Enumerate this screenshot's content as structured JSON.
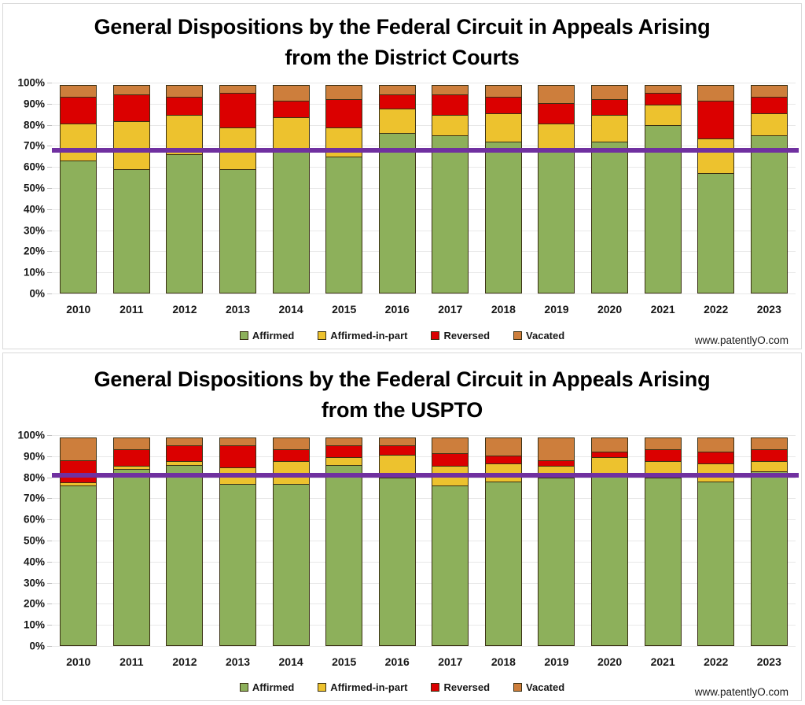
{
  "chart_data": [
    {
      "type": "bar",
      "variant": "stacked-100-percent",
      "title_line1": "General Dispositions by the Federal Circuit in Appeals Arising",
      "title_line2": "from the District Courts",
      "watermark": "www.patentlyO.com",
      "categories": [
        "2010",
        "2011",
        "2012",
        "2013",
        "2014",
        "2015",
        "2016",
        "2017",
        "2018",
        "2019",
        "2020",
        "2021",
        "2022",
        "2023"
      ],
      "series": [
        {
          "name": "Affirmed",
          "color": "#8DB05B",
          "values": [
            63,
            59,
            66,
            59,
            68,
            65,
            76,
            75,
            72,
            68,
            72,
            80,
            57,
            75
          ]
        },
        {
          "name": "Affirmed-in-part",
          "color": "#EDC22E",
          "values": [
            18,
            23,
            19,
            20,
            16,
            14,
            12,
            10,
            14,
            13,
            13,
            10,
            17,
            11
          ]
        },
        {
          "name": "Reversed",
          "color": "#DB0000",
          "values": [
            13,
            13,
            9,
            17,
            8,
            14,
            7,
            10,
            8,
            10,
            8,
            6,
            18,
            8
          ]
        },
        {
          "name": "Vacated",
          "color": "#CD7E3C",
          "values": [
            6,
            5,
            6,
            4,
            8,
            7,
            5,
            5,
            6,
            9,
            7,
            4,
            8,
            6
          ]
        }
      ],
      "ylabel": "",
      "xlabel": "",
      "ylim": [
        0,
        100
      ],
      "y_ticks": [
        "0%",
        "10%",
        "20%",
        "30%",
        "40%",
        "50%",
        "60%",
        "70%",
        "80%",
        "90%",
        "100%"
      ],
      "grid": "horizontal",
      "legend_position": "bottom",
      "reference_line": {
        "value": 68,
        "color": "#7030A0"
      }
    },
    {
      "type": "bar",
      "variant": "stacked-100-percent",
      "title_line1": "General Dispositions by the Federal Circuit in Appeals Arising",
      "title_line2": "from the USPTO",
      "watermark": "www.patentlyO.com",
      "categories": [
        "2010",
        "2011",
        "2012",
        "2013",
        "2014",
        "2015",
        "2016",
        "2017",
        "2018",
        "2019",
        "2020",
        "2021",
        "2022",
        "2023"
      ],
      "series": [
        {
          "name": "Affirmed",
          "color": "#8DB05B",
          "values": [
            76,
            84,
            86,
            77,
            77,
            86,
            80,
            76,
            78,
            80,
            81,
            80,
            78,
            83
          ]
        },
        {
          "name": "Affirmed-in-part",
          "color": "#EDC22E",
          "values": [
            2,
            2,
            2,
            8,
            11,
            4,
            11,
            10,
            9,
            6,
            9,
            8,
            9,
            5
          ]
        },
        {
          "name": "Reversed",
          "color": "#DB0000",
          "values": [
            11,
            8,
            8,
            11,
            6,
            6,
            5,
            6,
            4,
            3,
            3,
            6,
            6,
            6
          ]
        },
        {
          "name": "Vacated",
          "color": "#CD7E3C",
          "values": [
            11,
            6,
            4,
            4,
            6,
            4,
            4,
            8,
            9,
            11,
            7,
            6,
            7,
            6
          ]
        }
      ],
      "ylabel": "",
      "xlabel": "",
      "ylim": [
        0,
        100
      ],
      "y_ticks": [
        "0%",
        "10%",
        "20%",
        "30%",
        "40%",
        "50%",
        "60%",
        "70%",
        "80%",
        "90%",
        "100%"
      ],
      "grid": "horizontal",
      "legend_position": "bottom",
      "reference_line": {
        "value": 81,
        "color": "#7030A0"
      }
    }
  ],
  "style_colors": {
    "segment_border": "#3a3014",
    "gridline": "#e8e8e8",
    "panel_border": "#d9d9d9",
    "reference_line": "#7030A0"
  }
}
